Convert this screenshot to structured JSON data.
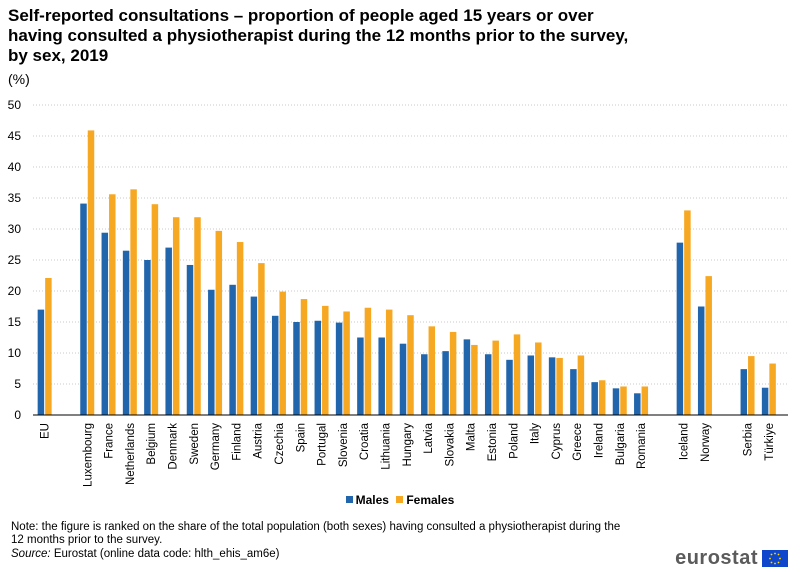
{
  "chart_data": {
    "type": "bar",
    "title": "Self-reported consultations – proportion of people aged 15 years or over having consulted a physiotherapist during the 12 months prior to the survey, by sex, 2019",
    "unit_label": "(%)",
    "xlabel": "",
    "ylabel": "(%)",
    "ylim": [
      0,
      50
    ],
    "yticks": [
      0,
      5,
      10,
      15,
      20,
      25,
      30,
      35,
      40,
      45,
      50
    ],
    "grid": true,
    "legend_position": "bottom",
    "categories": [
      "EU",
      "Luxembourg",
      "France",
      "Netherlands",
      "Belgium",
      "Denmark",
      "Sweden",
      "Germany",
      "Finland",
      "Austria",
      "Czechia",
      "Spain",
      "Portugal",
      "Slovenia",
      "Croatia",
      "Lithuania",
      "Hungary",
      "Latvia",
      "Slovakia",
      "Malta",
      "Estonia",
      "Poland",
      "Italy",
      "Cyprus",
      "Greece",
      "Ireland",
      "Bulgaria",
      "Romania",
      "Iceland",
      "Norway",
      "Serbia",
      "Türkiye"
    ],
    "groups": [
      1,
      27,
      2,
      2
    ],
    "series": [
      {
        "name": "Males",
        "color": "#2166ac",
        "values": [
          17.0,
          34.1,
          29.4,
          26.5,
          25.0,
          27.0,
          24.2,
          20.2,
          21.0,
          19.1,
          16.0,
          15.0,
          15.2,
          14.9,
          12.5,
          12.5,
          11.5,
          9.8,
          10.3,
          12.2,
          9.8,
          8.9,
          9.6,
          9.3,
          7.4,
          5.3,
          4.3,
          3.5,
          27.8,
          17.5,
          7.4,
          4.4
        ]
      },
      {
        "name": "Females",
        "color": "#f7a823",
        "values": [
          22.1,
          45.9,
          35.6,
          36.4,
          34.0,
          31.9,
          31.9,
          29.7,
          27.9,
          24.5,
          19.9,
          18.7,
          17.6,
          16.7,
          17.3,
          17.0,
          16.1,
          14.3,
          13.4,
          11.3,
          12.0,
          13.0,
          11.7,
          9.2,
          9.6,
          5.6,
          4.6,
          4.6,
          33.0,
          22.4,
          9.5,
          8.3
        ]
      }
    ]
  },
  "note": "Note: the figure is ranked on the share of the total population (both sexes) having consulted a physiotherapist during the 12 months prior to the survey.",
  "source_label": "Source:",
  "source_text": " Eurostat (online data code: hlth_ehis_am6e)",
  "logo_text": "eurostat"
}
